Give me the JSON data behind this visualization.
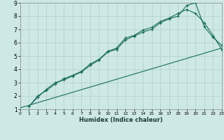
{
  "title": "",
  "xlabel": "Humidex (Indice chaleur)",
  "bg_color": "#cde8e5",
  "grid_color": "#b0cfcc",
  "line_color": "#1a6b5c",
  "xlim": [
    0,
    23
  ],
  "ylim": [
    1,
    9
  ],
  "xticks": [
    0,
    1,
    2,
    3,
    4,
    5,
    6,
    7,
    8,
    9,
    10,
    11,
    12,
    13,
    14,
    15,
    16,
    17,
    18,
    19,
    20,
    21,
    22,
    23
  ],
  "yticks": [
    1,
    2,
    3,
    4,
    5,
    6,
    7,
    8,
    9
  ],
  "series1_x": [
    1,
    2,
    3,
    4,
    5,
    6,
    7,
    8,
    9,
    10,
    11,
    12,
    13,
    14,
    15,
    16,
    17,
    18,
    19,
    20,
    21,
    22,
    23
  ],
  "series1_y": [
    1.2,
    1.9,
    2.5,
    3.0,
    3.2,
    3.5,
    3.8,
    4.3,
    4.7,
    5.3,
    5.5,
    6.2,
    6.5,
    6.8,
    7.0,
    7.5,
    7.8,
    8.0,
    8.8,
    9.0,
    7.2,
    6.4,
    5.8
  ],
  "series2_x": [
    1,
    2,
    3,
    4,
    5,
    6,
    7,
    8,
    9,
    10,
    11,
    12,
    13,
    14,
    15,
    16,
    17,
    18,
    19,
    20,
    21,
    22,
    23
  ],
  "series2_y": [
    1.2,
    2.0,
    2.4,
    2.9,
    3.3,
    3.55,
    3.85,
    4.4,
    4.75,
    5.35,
    5.6,
    6.35,
    6.55,
    6.95,
    7.15,
    7.6,
    7.85,
    8.2,
    8.5,
    8.2,
    7.5,
    6.55,
    5.5
  ],
  "series3_x": [
    0,
    23
  ],
  "series3_y": [
    1.1,
    5.6
  ]
}
